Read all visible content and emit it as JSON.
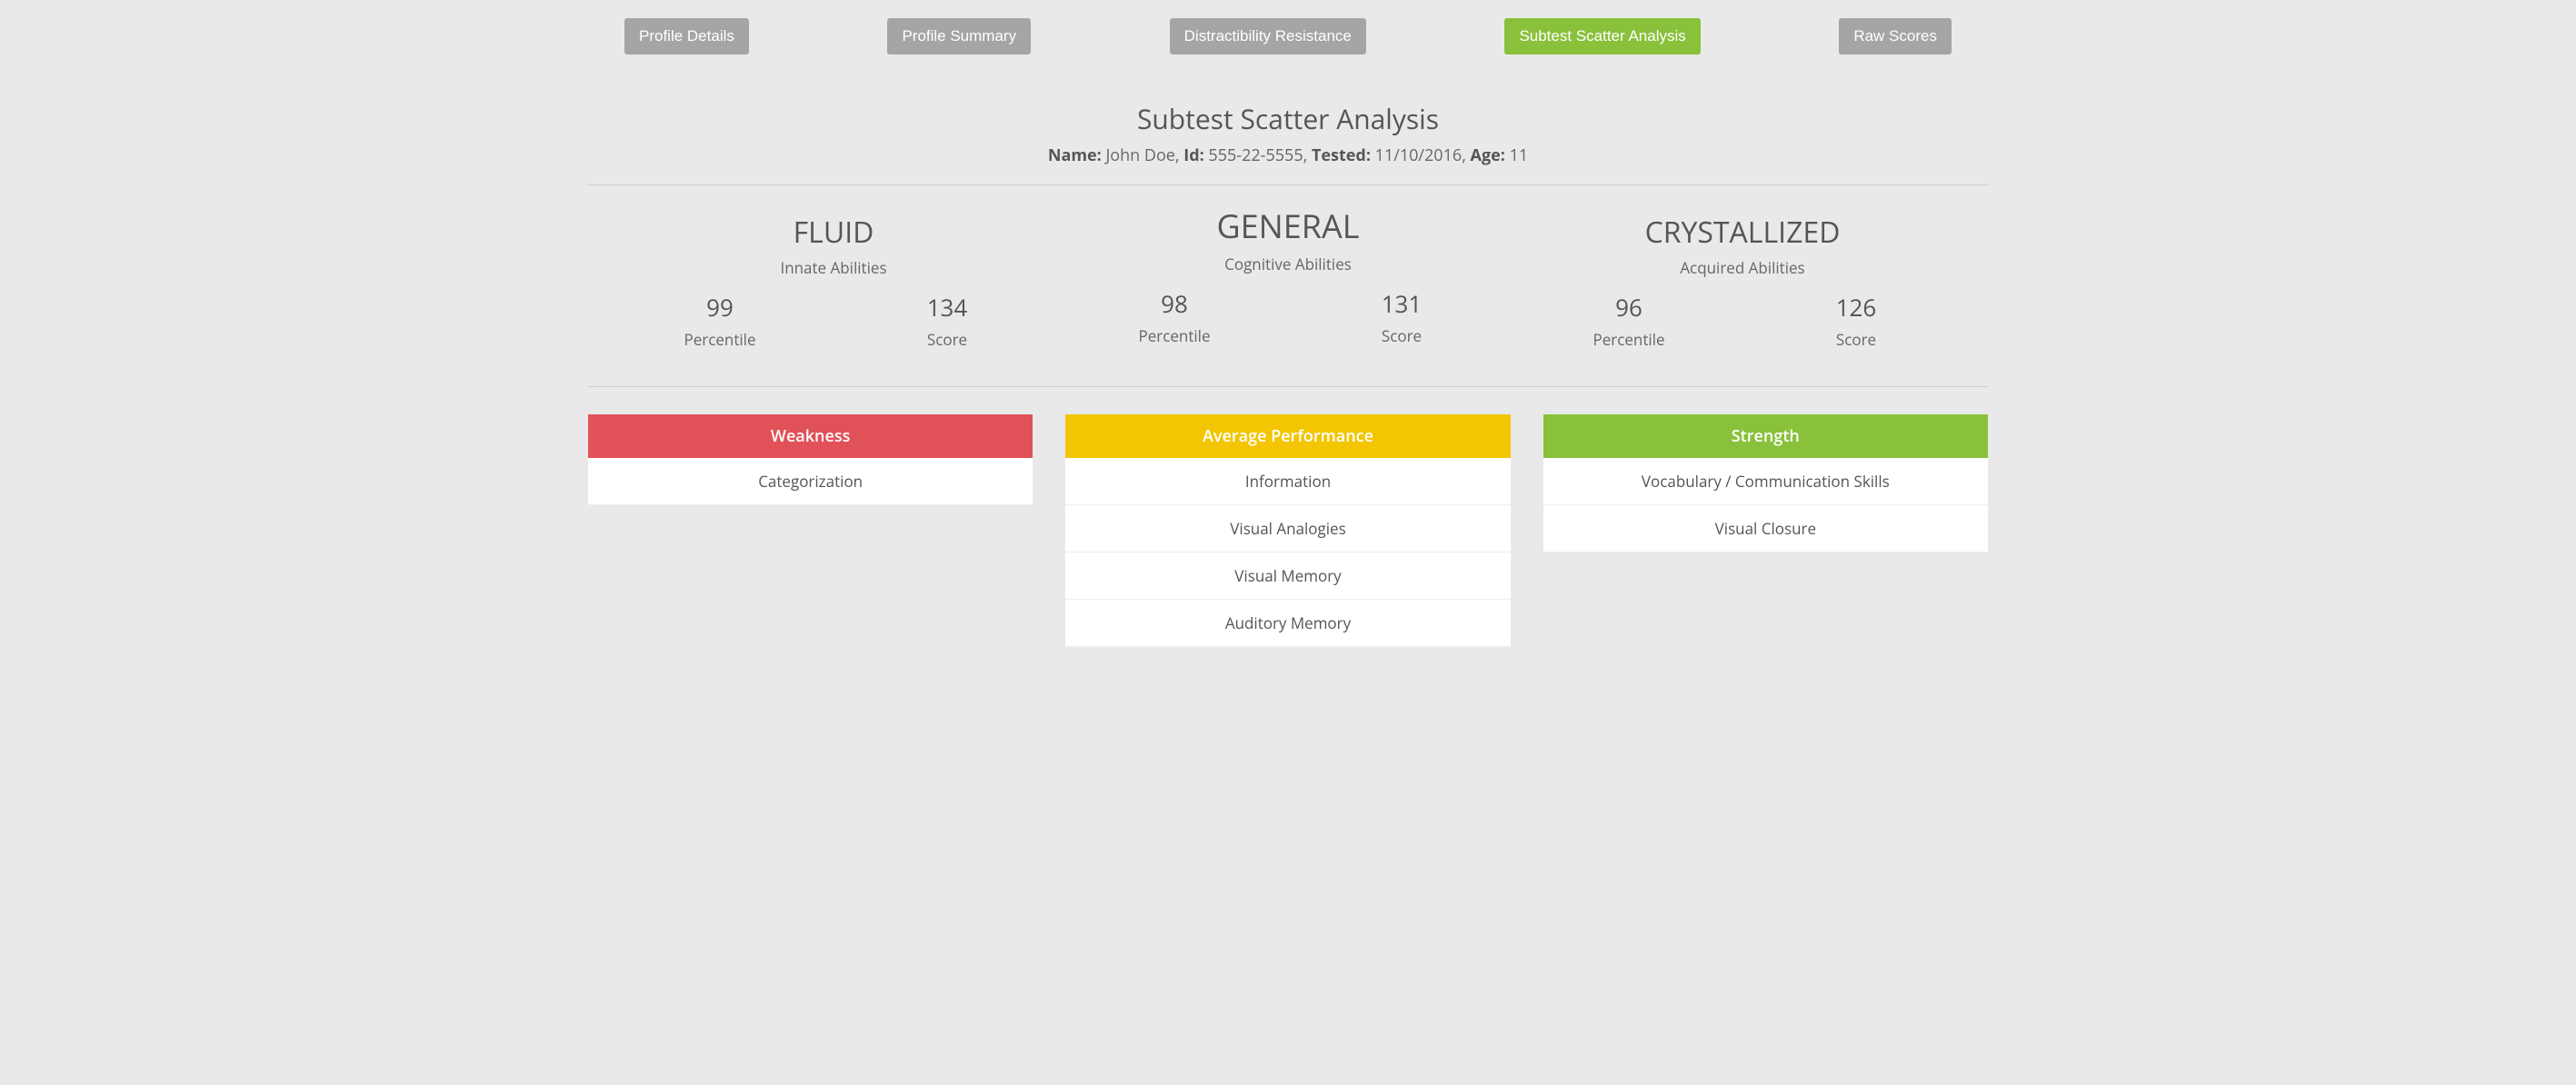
{
  "tabs": [
    {
      "label": "Profile Details",
      "active": false
    },
    {
      "label": "Profile Summary",
      "active": false
    },
    {
      "label": "Distractibility Resistance",
      "active": false
    },
    {
      "label": "Subtest Scatter Analysis",
      "active": true
    },
    {
      "label": "Raw Scores",
      "active": false
    }
  ],
  "page_title": "Subtest Scatter Analysis",
  "subject": {
    "name_label": "Name:",
    "name": "John Doe",
    "id_label": "Id:",
    "id": "555-22-5555",
    "tested_label": "Tested:",
    "tested": "11/10/2016",
    "age_label": "Age:",
    "age": "11"
  },
  "scores": {
    "fluid": {
      "heading": "FLUID",
      "sub": "Innate Abilities",
      "percentile": "99",
      "percentile_label": "Percentile",
      "score": "134",
      "score_label": "Score"
    },
    "general": {
      "heading": "GENERAL",
      "sub": "Cognitive Abilities",
      "percentile": "98",
      "percentile_label": "Percentile",
      "score": "131",
      "score_label": "Score"
    },
    "crystallized": {
      "heading": "CRYSTALLIZED",
      "sub": "Acquired Abilities",
      "percentile": "96",
      "percentile_label": "Percentile",
      "score": "126",
      "score_label": "Score"
    }
  },
  "cards": {
    "weakness": {
      "header": "Weakness",
      "color": "#e15258",
      "items": [
        "Categorization"
      ]
    },
    "average": {
      "header": "Average Performance",
      "color": "#f3c502",
      "items": [
        "Information",
        "Visual Analogies",
        "Visual Memory",
        "Auditory Memory"
      ]
    },
    "strength": {
      "header": "Strength",
      "color": "#89c13b",
      "items": [
        "Vocabulary / Communication Skills",
        "Visual Closure"
      ]
    }
  }
}
